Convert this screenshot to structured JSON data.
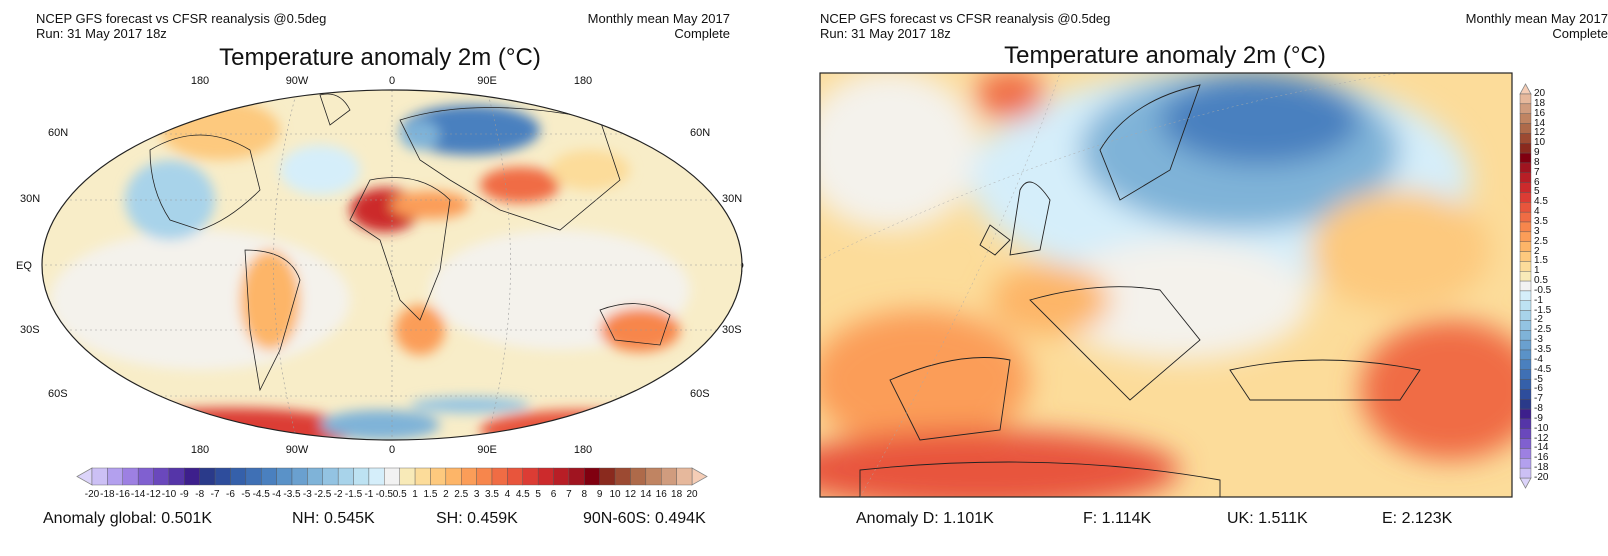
{
  "left_panel": {
    "header_left_line1": "NCEP GFS forecast vs CFSR reanalysis @0.5deg",
    "header_left_line2": "Run: 31 May 2017 18z",
    "header_right_line1": "Monthly mean May 2017",
    "header_right_line2": "Complete",
    "title": "Temperature anomaly 2m (°C)",
    "lon_labels": [
      "180",
      "90W",
      "0",
      "90E",
      "180"
    ],
    "lat_labels": [
      "60N",
      "30N",
      "EQ",
      "30S",
      "60S"
    ],
    "stats": [
      "Anomaly global: 0.501K",
      "NH: 0.545K",
      "SH: 0.459K",
      "90N-60S: 0.494K"
    ]
  },
  "right_panel": {
    "header_left_line1": "NCEP GFS forecast vs CFSR reanalysis @0.5deg",
    "header_left_line2": "Run: 31 May 2017 18z",
    "header_right_line1": "Monthly mean May 2017",
    "header_right_line2": "Complete",
    "title": "Temperature anomaly 2m (°C)",
    "stats": [
      "Anomaly D: 1.101K",
      "F: 1.114K",
      "UK: 1.511K",
      "E: 2.123K"
    ]
  },
  "colorbar": {
    "labels": [
      "-20",
      "-18",
      "-16",
      "-14",
      "-12",
      "-10",
      "-9",
      "-8",
      "-7",
      "-6",
      "-5",
      "-4.5",
      "-4",
      "-3.5",
      "-3",
      "-2.5",
      "-2",
      "-1.5",
      "-1",
      "-0.5",
      "0.5",
      "1",
      "1.5",
      "2",
      "2.5",
      "3",
      "3.5",
      "4",
      "4.5",
      "5",
      "6",
      "7",
      "8",
      "9",
      "10",
      "12",
      "14",
      "16",
      "18",
      "20"
    ],
    "colors": [
      "#ccc0f5",
      "#b3a0ee",
      "#9d80e2",
      "#8060d0",
      "#6a48bc",
      "#5535a8",
      "#3d1f8c",
      "#2a3a8a",
      "#2e4d9c",
      "#3560aa",
      "#3f70b5",
      "#4a80bf",
      "#5a92c8",
      "#6aa0cf",
      "#7fb3d8",
      "#93c3e2",
      "#a8d3ea",
      "#bde2f2",
      "#d5eefa",
      "#f2f2f2",
      "#f8eab8",
      "#fcdc9a",
      "#fdc97e",
      "#fdb568",
      "#fb9d58",
      "#f7864c",
      "#f06c44",
      "#e8553c",
      "#dc3c34",
      "#cc2a2c",
      "#b81e26",
      "#a01420",
      "#800010",
      "#8a2a1e",
      "#9c4a32",
      "#ae6a4a",
      "#c08462",
      "#d09c7e",
      "#e6b89c"
    ],
    "low_extend_color": "#dcd4fa",
    "high_extend_color": "#f5cdb6"
  }
}
